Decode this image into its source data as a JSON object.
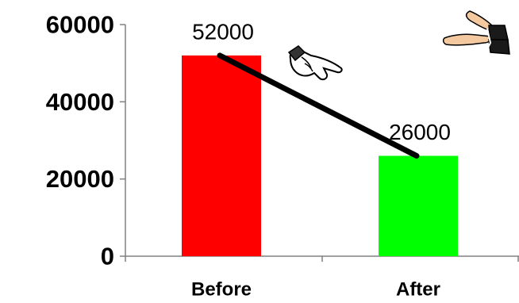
{
  "chart_data": {
    "type": "bar",
    "categories": [
      "Before",
      "After"
    ],
    "values": [
      52000,
      26000
    ],
    "data_labels": [
      "52000",
      "26000"
    ],
    "bar_colors": [
      "#ff0000",
      "#00ff00"
    ],
    "yticks": [
      "0",
      "20000",
      "40000",
      "60000"
    ],
    "ylim": [
      0,
      60000
    ],
    "grid": false,
    "trend_line": {
      "from": 52000,
      "to": 26000,
      "color": "#000000"
    },
    "decorations": [
      "pointing-hand-icon",
      "clapping-hands-icon"
    ]
  }
}
